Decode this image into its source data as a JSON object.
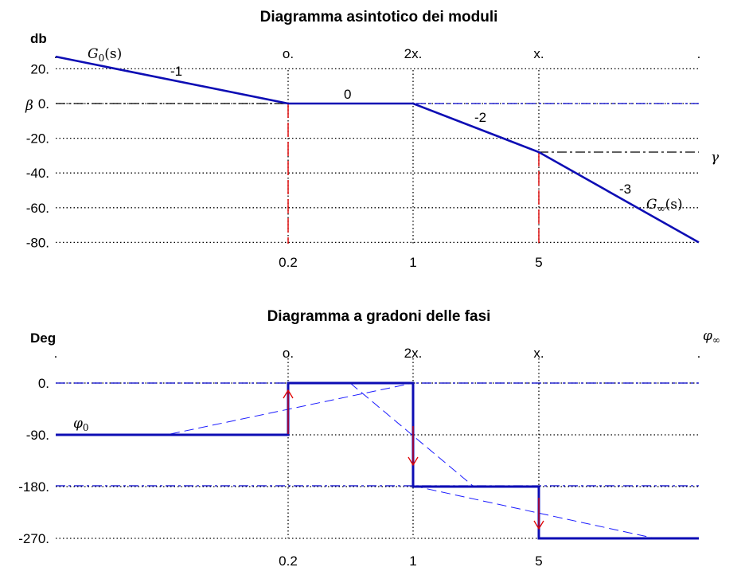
{
  "chart_data": [
    {
      "type": "line",
      "title": "Diagramma asintotico dei moduli",
      "ylabel": "db",
      "ytick_labels": [
        "20.",
        "0.",
        "-20.",
        "-40.",
        "-60.",
        "-80."
      ],
      "ytick_values": [
        20,
        0,
        -20,
        -40,
        -60,
        -80
      ],
      "ylim": [
        -80,
        27
      ],
      "top_labels": [
        ".",
        "o.",
        "2x.",
        "x.",
        "."
      ],
      "bottom_labels": [
        "0.2",
        "1",
        "5"
      ],
      "grid": "dotted",
      "series": [
        {
          "name": "asymptotic magnitude",
          "x": [
            0,
            0.2,
            1,
            5,
            9
          ],
          "y": [
            27,
            0,
            0,
            -28,
            -80
          ]
        }
      ],
      "slope_labels": [
        "-1",
        "0",
        "-2",
        "-3"
      ],
      "annotations": {
        "g0": {
          "base": "G",
          "sub": "0",
          "arg": "(s)"
        },
        "ginf": {
          "base": "G",
          "sub": "∞",
          "arg": "(s)"
        },
        "beta": "β",
        "gamma": "γ"
      }
    },
    {
      "type": "line",
      "title": "Diagramma a gradoni delle fasi",
      "ylabel": "Deg",
      "ytick_labels": [
        "0.",
        "-90.",
        "-180.",
        "-270."
      ],
      "ytick_values": [
        0,
        -90,
        -180,
        -270
      ],
      "ylim": [
        -270,
        0
      ],
      "top_labels": [
        ".",
        "o.",
        "2x.",
        "x.",
        "."
      ],
      "bottom_labels": [
        "0.2",
        "1",
        "5"
      ],
      "grid": "dotted",
      "series": [
        {
          "name": "step phase",
          "x": [
            0,
            0.2,
            0.2,
            1,
            1,
            5,
            5,
            9
          ],
          "y": [
            -90,
            -90,
            0,
            0,
            -180,
            -180,
            -270,
            -270
          ]
        }
      ],
      "annotations": {
        "phi0": {
          "base": "φ",
          "sub": "0"
        },
        "phiinf": {
          "base": "φ",
          "sub": "∞"
        }
      }
    }
  ],
  "colors": {
    "curve": "#1a1aff",
    "curve_dark": "#0d0db4",
    "red": "#e00000",
    "blue_dashdot": "#0000cc",
    "black": "#000000"
  }
}
